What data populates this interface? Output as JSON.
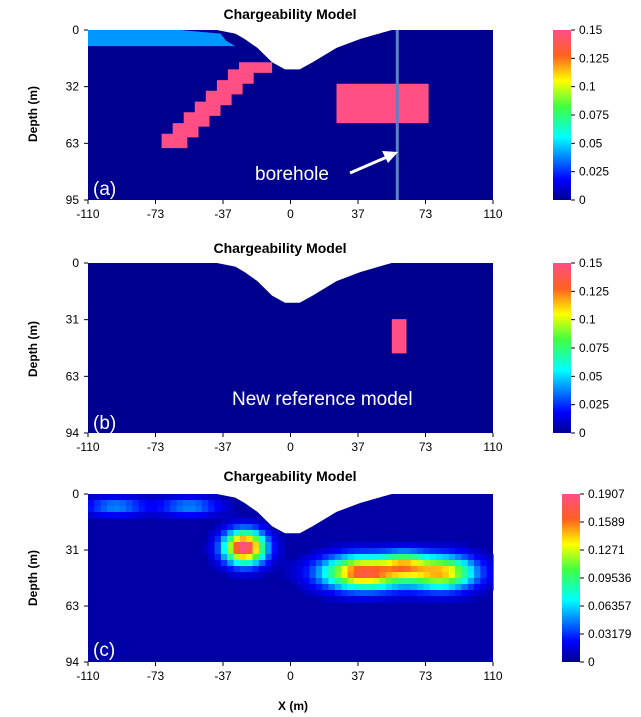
{
  "figure": {
    "xlabel": "X (m)"
  },
  "chart_data": [
    {
      "type": "heatmap",
      "title": "Chargeability Model",
      "panel_label": "(a)",
      "ylabel": "Depth (m)",
      "xlim": [
        -110,
        110
      ],
      "ylim": [
        0,
        95
      ],
      "x_ticks": [
        "-110",
        "-73",
        "-37",
        "0",
        "37",
        "73",
        "110"
      ],
      "y_ticks": [
        "0",
        "32",
        "63",
        "95"
      ],
      "colorbar": {
        "min": 0,
        "max": 0.15,
        "ticks": [
          "0.15",
          "0.125",
          "0.1",
          "0.075",
          "0.05",
          "0.025",
          "0"
        ]
      },
      "background_value": 0,
      "topography": [
        [
          -110,
          0
        ],
        [
          -60,
          0
        ],
        [
          -40,
          0
        ],
        [
          -30,
          2
        ],
        [
          -25,
          5
        ],
        [
          -18,
          10
        ],
        [
          -10,
          18
        ],
        [
          -3,
          22
        ],
        [
          5,
          22
        ],
        [
          12,
          18
        ],
        [
          25,
          10
        ],
        [
          38,
          5
        ],
        [
          48,
          2
        ],
        [
          55,
          0
        ],
        [
          110,
          0
        ]
      ],
      "bodies": [
        {
          "name": "near-surface layer",
          "value": 0.04,
          "polygon": [
            [
              -110,
              0
            ],
            [
              -60,
              0
            ],
            [
              -38,
              2
            ],
            [
              -35,
              6
            ],
            [
              -30,
              9
            ],
            [
              -110,
              9
            ]
          ]
        },
        {
          "name": "dipping body",
          "value": 0.15,
          "polygon": [
            [
              -22,
              18
            ],
            [
              -10,
              18
            ],
            [
              -10,
              24
            ],
            [
              -20,
              24
            ],
            [
              -20,
              30
            ],
            [
              -26,
              30
            ],
            [
              -26,
              36
            ],
            [
              -32,
              36
            ],
            [
              -32,
              42
            ],
            [
              -38,
              42
            ],
            [
              -38,
              48
            ],
            [
              -44,
              48
            ],
            [
              -44,
              54
            ],
            [
              -50,
              54
            ],
            [
              -50,
              60
            ],
            [
              -56,
              60
            ],
            [
              -56,
              66
            ],
            [
              -70,
              66
            ],
            [
              -70,
              58
            ],
            [
              -64,
              58
            ],
            [
              -64,
              52
            ],
            [
              -58,
              52
            ],
            [
              -58,
              46
            ],
            [
              -52,
              46
            ],
            [
              -52,
              40
            ],
            [
              -46,
              40
            ],
            [
              -46,
              34
            ],
            [
              -40,
              34
            ],
            [
              -40,
              28
            ],
            [
              -34,
              28
            ],
            [
              -34,
              22
            ],
            [
              -28,
              22
            ],
            [
              -28,
              18
            ]
          ]
        },
        {
          "name": "block body",
          "value": 0.15,
          "polygon": [
            [
              25,
              30
            ],
            [
              75,
              30
            ],
            [
              75,
              52
            ],
            [
              25,
              52
            ]
          ]
        }
      ],
      "borehole": {
        "x": 58,
        "label": "borehole"
      },
      "annotation": ""
    },
    {
      "type": "heatmap",
      "title": "Chargeability Model",
      "panel_label": "(b)",
      "ylabel": "Depth (m)",
      "xlim": [
        -110,
        110
      ],
      "ylim": [
        0,
        94
      ],
      "x_ticks": [
        "-110",
        "-73",
        "-37",
        "0",
        "37",
        "73",
        "110"
      ],
      "y_ticks": [
        "0",
        "31",
        "63",
        "94"
      ],
      "colorbar": {
        "min": 0,
        "max": 0.15,
        "ticks": [
          "0.15",
          "0.125",
          "0.1",
          "0.075",
          "0.05",
          "0.025",
          "0"
        ]
      },
      "background_value": 0,
      "topography": [
        [
          -110,
          0
        ],
        [
          -60,
          0
        ],
        [
          -40,
          0
        ],
        [
          -30,
          2
        ],
        [
          -25,
          5
        ],
        [
          -18,
          10
        ],
        [
          -10,
          18
        ],
        [
          -3,
          22
        ],
        [
          5,
          22
        ],
        [
          12,
          18
        ],
        [
          25,
          10
        ],
        [
          38,
          5
        ],
        [
          48,
          2
        ],
        [
          55,
          0
        ],
        [
          110,
          0
        ]
      ],
      "bodies": [
        {
          "name": "reference body",
          "value": 0.15,
          "polygon": [
            [
              55,
              31
            ],
            [
              63,
              31
            ],
            [
              63,
              50
            ],
            [
              55,
              50
            ]
          ]
        }
      ],
      "borehole": null,
      "annotation": "New reference model"
    },
    {
      "type": "heatmap",
      "title": "Chargeability Model",
      "panel_label": "(c)",
      "ylabel": "Depth (m)",
      "xlim": [
        -110,
        110
      ],
      "ylim": [
        0,
        94
      ],
      "x_ticks": [
        "-110",
        "-73",
        "-37",
        "0",
        "37",
        "73",
        "110"
      ],
      "y_ticks": [
        "0",
        "31",
        "63",
        "94"
      ],
      "colorbar": {
        "min": 0,
        "max": 0.1907,
        "ticks": [
          "0.1907",
          "0.1589",
          "0.1271",
          "0.09536",
          "0.06357",
          "0.03179",
          "0"
        ]
      },
      "background_value": 0.005,
      "topography": [
        [
          -110,
          0
        ],
        [
          -60,
          0
        ],
        [
          -40,
          0
        ],
        [
          -30,
          2
        ],
        [
          -25,
          5
        ],
        [
          -18,
          10
        ],
        [
          -10,
          18
        ],
        [
          -3,
          22
        ],
        [
          5,
          22
        ],
        [
          12,
          18
        ],
        [
          25,
          10
        ],
        [
          38,
          5
        ],
        [
          48,
          2
        ],
        [
          55,
          0
        ],
        [
          110,
          0
        ]
      ],
      "anomalies": [
        {
          "x": -25,
          "y": 30,
          "sx": 11,
          "sy": 9,
          "amp": 0.19
        },
        {
          "x": -95,
          "y": 7,
          "sx": 16,
          "sy": 5,
          "amp": 0.045
        },
        {
          "x": -55,
          "y": 7,
          "sx": 16,
          "sy": 5,
          "amp": 0.045
        },
        {
          "x": 40,
          "y": 44,
          "sx": 22,
          "sy": 9,
          "amp": 0.17
        },
        {
          "x": 62,
          "y": 39,
          "sx": 11,
          "sy": 7,
          "amp": 0.07
        },
        {
          "x": 82,
          "y": 44,
          "sx": 18,
          "sy": 9,
          "amp": 0.14
        }
      ],
      "borehole": null,
      "annotation": ""
    }
  ]
}
